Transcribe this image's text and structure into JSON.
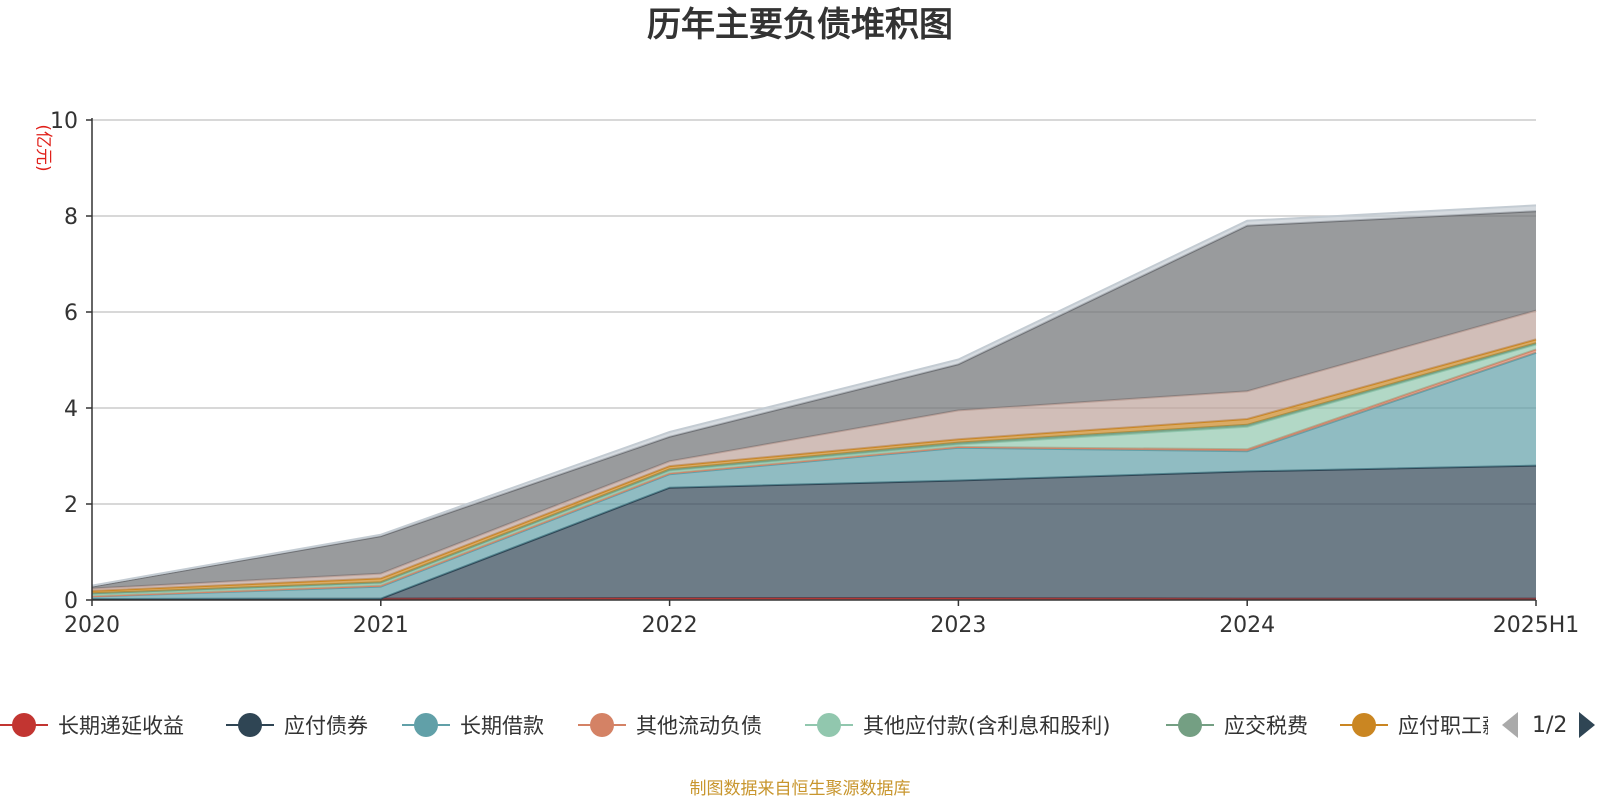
{
  "chart_data": {
    "type": "area",
    "title": "历年主要负债堆积图",
    "ylabel": "(亿元)",
    "xlabel": "",
    "categories": [
      "2020",
      "2021",
      "2022",
      "2023",
      "2024",
      "2025H1"
    ],
    "ylim": [
      0,
      10
    ],
    "yticks": [
      0,
      2,
      4,
      6,
      8,
      10
    ],
    "grid": true,
    "stacked": true,
    "legend_position": "bottom",
    "series": [
      {
        "name": "长期递延收益",
        "color": "#c23531",
        "values": [
          0.02,
          0.03,
          0.04,
          0.04,
          0.03,
          0.03
        ]
      },
      {
        "name": "应付债券",
        "color": "#2f4554",
        "values": [
          0,
          0,
          2.3,
          2.45,
          2.65,
          2.77
        ]
      },
      {
        "name": "长期借款",
        "color": "#61a0a8",
        "values": [
          0.05,
          0.25,
          0.28,
          0.68,
          0.42,
          2.35
        ]
      },
      {
        "name": "其他流动负债",
        "color": "#d48265",
        "values": [
          0.01,
          0.02,
          0.02,
          0.02,
          0.04,
          0.07
        ]
      },
      {
        "name": "其他应付款(含利息和股利)",
        "color": "#91c7ae",
        "values": [
          0.04,
          0.05,
          0.05,
          0.05,
          0.47,
          0.1
        ]
      },
      {
        "name": "应交税费",
        "color": "#749f83",
        "values": [
          0.02,
          0.02,
          0.03,
          0.04,
          0.04,
          0.03
        ]
      },
      {
        "name": "应付职工薪酬",
        "color": "#ca8622",
        "values": [
          0.05,
          0.08,
          0.07,
          0.07,
          0.12,
          0.08
        ]
      },
      {
        "name": "",
        "color": "#bda29a",
        "values": [
          0.05,
          0.1,
          0.1,
          0.6,
          0.58,
          0.6
        ]
      },
      {
        "name": "",
        "color": "#6e7074",
        "values": [
          0.04,
          0.78,
          0.51,
          0.96,
          3.45,
          2.07
        ]
      },
      {
        "name": "",
        "color": "#c4ccd3",
        "values": [
          0.02,
          0.03,
          0.1,
          0.1,
          0.1,
          0.12
        ]
      }
    ]
  },
  "legend": {
    "items": [
      {
        "name": "长期递延收益",
        "color": "#c23531"
      },
      {
        "name": "应付债券",
        "color": "#2f4554"
      },
      {
        "name": "长期借款",
        "color": "#61a0a8"
      },
      {
        "name": "其他流动负债",
        "color": "#d48265"
      },
      {
        "name": "其他应付款(含利息和股利)",
        "color": "#91c7ae"
      },
      {
        "name": "应交税费",
        "color": "#749f83"
      },
      {
        "name": "应付职工薪酬",
        "color": "#ca8622"
      }
    ],
    "page_label": "1/2",
    "prev_icon": "triangle-left-icon",
    "next_icon": "triangle-right-icon"
  },
  "footer": {
    "note": "制图数据来自恒生聚源数据库"
  }
}
